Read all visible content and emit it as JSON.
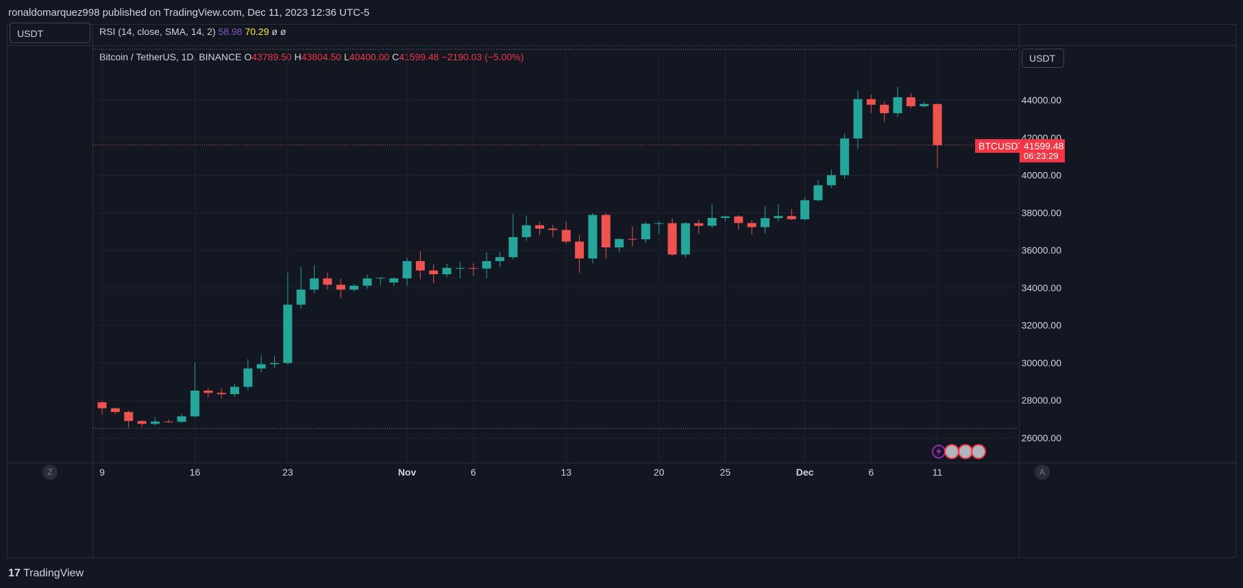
{
  "header": {
    "published": "ronaldomarquez998 published on TradingView.com, Dec 11, 2023 12:36 UTC-5"
  },
  "currency_button": "USDT",
  "currency_button_right": "USDT",
  "indicator": {
    "name": "RSI (14, close, SMA, 14, 2)",
    "value1": "58.98",
    "value2": "70.29",
    "v3": "ø",
    "v4": "ø"
  },
  "symbol": {
    "name": "Bitcoin / TetherUS, 1D, BINANCE",
    "o_label": "O",
    "o": "43789.50",
    "h_label": "H",
    "h": "43804.50",
    "l_label": "L",
    "l": "40400.00",
    "c_label": "C",
    "c": "41599.48",
    "change": "−2190.03 (−5.00%)"
  },
  "price_tag": {
    "symbol": "BTCUSDT",
    "price": "41599.48",
    "countdown": "06:23:29"
  },
  "bottom": {
    "z_label": "Z",
    "a_label": "A",
    "brand": "TradingView",
    "brand_icon": "tradingview-logo-icon"
  },
  "colors": {
    "up": "#26a69a",
    "down": "#ef5350",
    "bg": "#131722",
    "grid": "#1f2330"
  },
  "chart_data": {
    "type": "candlestick",
    "title": "Bitcoin / TetherUS, 1D, BINANCE",
    "ylim": [
      25000,
      47000
    ],
    "y_ticks": [
      26000,
      28000,
      30000,
      32000,
      34000,
      36000,
      38000,
      40000,
      42000,
      44000
    ],
    "y_tick_labels": [
      "26000.00",
      "28000.00",
      "30000.00",
      "32000.00",
      "34000.00",
      "36000.00",
      "38000.00",
      "40000.00",
      "42000.00",
      "44000.00"
    ],
    "x_ticks": [
      {
        "idx": 0,
        "label": "9"
      },
      {
        "idx": 7,
        "label": "16"
      },
      {
        "idx": 14,
        "label": "23"
      },
      {
        "idx": 23,
        "label": "Nov"
      },
      {
        "idx": 28,
        "label": "6"
      },
      {
        "idx": 35,
        "label": "13"
      },
      {
        "idx": 42,
        "label": "20"
      },
      {
        "idx": 47,
        "label": "25"
      },
      {
        "idx": 53,
        "label": "Dec"
      },
      {
        "idx": 58,
        "label": "6"
      },
      {
        "idx": 63,
        "label": "11"
      }
    ],
    "bold_x_labels": [
      "Nov",
      "Dec"
    ],
    "range_lines": [
      46700,
      26500
    ],
    "last_price": 41599.48,
    "candles": [
      [
        27900,
        27970,
        27250,
        27580
      ],
      [
        27580,
        27600,
        27270,
        27380
      ],
      [
        27380,
        27450,
        26540,
        26900
      ],
      [
        26900,
        26960,
        26560,
        26750
      ],
      [
        26750,
        27080,
        26650,
        26870
      ],
      [
        26870,
        26980,
        26800,
        26860
      ],
      [
        26860,
        27300,
        26800,
        27150
      ],
      [
        27150,
        30000,
        27100,
        28520
      ],
      [
        28520,
        28650,
        28150,
        28400
      ],
      [
        28400,
        28640,
        28100,
        28330
      ],
      [
        28330,
        28900,
        28180,
        28720
      ],
      [
        28720,
        30200,
        28550,
        29700
      ],
      [
        29700,
        30400,
        29500,
        29930
      ],
      [
        29930,
        30380,
        29730,
        29990
      ],
      [
        29990,
        34800,
        29900,
        33100
      ],
      [
        33100,
        35100,
        32900,
        33900
      ],
      [
        33900,
        35200,
        33700,
        34500
      ],
      [
        34500,
        34800,
        33900,
        34160
      ],
      [
        34160,
        34500,
        33450,
        33900
      ],
      [
        33900,
        34200,
        33800,
        34110
      ],
      [
        34110,
        34700,
        33950,
        34500
      ],
      [
        34500,
        34550,
        34120,
        34530
      ],
      [
        34280,
        34550,
        34100,
        34500
      ],
      [
        34500,
        35600,
        34100,
        35420
      ],
      [
        35420,
        35950,
        34450,
        34920
      ],
      [
        34920,
        35250,
        34240,
        34720
      ],
      [
        34720,
        35280,
        34560,
        35060
      ],
      [
        35050,
        35380,
        34500,
        35050
      ],
      [
        35050,
        35300,
        34640,
        35020
      ],
      [
        35020,
        35900,
        34500,
        35420
      ],
      [
        35420,
        35900,
        35100,
        35630
      ],
      [
        35630,
        37950,
        35500,
        36700
      ],
      [
        36700,
        37850,
        36500,
        37330
      ],
      [
        37330,
        37500,
        36800,
        37150
      ],
      [
        37150,
        37350,
        36700,
        37080
      ],
      [
        37080,
        37500,
        36340,
        36460
      ],
      [
        36460,
        36800,
        34800,
        35560
      ],
      [
        35560,
        37980,
        35300,
        37880
      ],
      [
        37880,
        37980,
        35530,
        36150
      ],
      [
        36150,
        36600,
        35900,
        36600
      ],
      [
        36600,
        37250,
        36200,
        36580
      ],
      [
        36580,
        37500,
        36400,
        37410
      ],
      [
        37410,
        37550,
        36850,
        37440
      ],
      [
        37440,
        37700,
        35700,
        35770
      ],
      [
        35770,
        37480,
        35600,
        37440
      ],
      [
        37440,
        37650,
        36860,
        37300
      ],
      [
        37300,
        38450,
        37170,
        37720
      ],
      [
        37720,
        37850,
        37550,
        37800
      ],
      [
        37800,
        37870,
        37100,
        37450
      ],
      [
        37450,
        37600,
        36850,
        37230
      ],
      [
        37230,
        38350,
        36900,
        37710
      ],
      [
        37710,
        38450,
        37540,
        37820
      ],
      [
        37820,
        38200,
        37600,
        37650
      ],
      [
        37650,
        38800,
        37600,
        38660
      ],
      [
        38660,
        39750,
        38600,
        39460
      ],
      [
        39460,
        40300,
        39300,
        40000
      ],
      [
        40000,
        42200,
        39800,
        41950
      ],
      [
        41950,
        44500,
        41400,
        44050
      ],
      [
        44050,
        44300,
        43300,
        43750
      ],
      [
        43750,
        43900,
        42850,
        43300
      ],
      [
        43300,
        44700,
        43100,
        44150
      ],
      [
        44150,
        44380,
        43550,
        43670
      ],
      [
        43670,
        43900,
        43600,
        43790
      ],
      [
        43789.5,
        43804.5,
        40400,
        41599.48
      ]
    ]
  }
}
